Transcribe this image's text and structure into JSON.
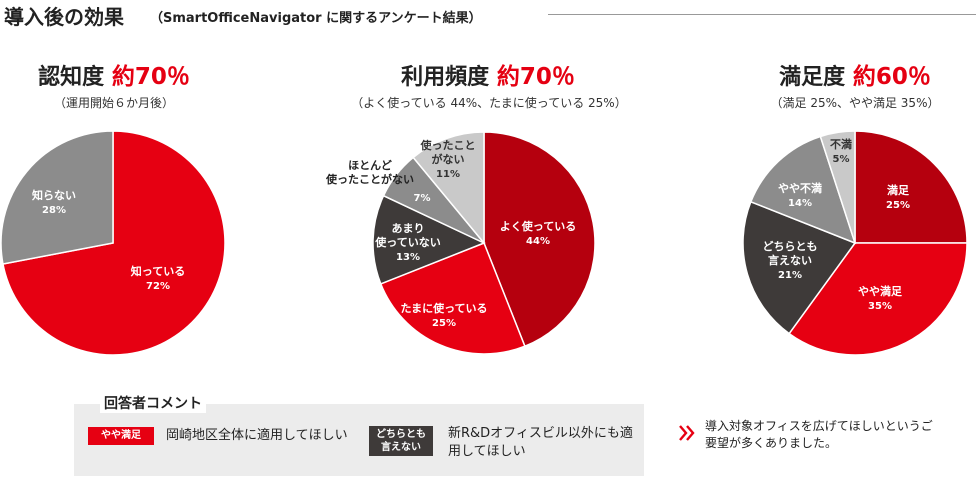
{
  "header": {
    "title": "導入後の効果",
    "subtitle": "（SmartOfficeNavigator に関するアンケート結果）"
  },
  "charts": [
    {
      "label": "認知度",
      "value": "約70％",
      "note": "（運用開始６か月後）"
    },
    {
      "label": "利用頻度",
      "value": "約70％",
      "note": "（よく使っている 44%、たまに使っている 25%）"
    },
    {
      "label": "満足度",
      "value": "約60％",
      "note": "（満足 25%、やや満足 35%）"
    }
  ],
  "chart_data": [
    {
      "type": "pie",
      "title": "認知度 約70％",
      "slices": [
        {
          "label": "知っている",
          "value": 72,
          "display": "72%",
          "color": "#e60012"
        },
        {
          "label": "知らない",
          "value": 28,
          "display": "28%",
          "color": "#8c8c8c"
        }
      ]
    },
    {
      "type": "pie",
      "title": "利用頻度 約70％",
      "slices": [
        {
          "label": "よく使っている",
          "value": 44,
          "display": "44%",
          "color": "#b5000e"
        },
        {
          "label": "たまに使っている",
          "value": 25,
          "display": "25%",
          "color": "#e60012"
        },
        {
          "label": "あまり使っていない",
          "value": 13,
          "display": "13%",
          "color": "#3e3a39"
        },
        {
          "label": "ほとんど使ったことがない",
          "value": 7,
          "display": "7%",
          "color": "#8c8c8c"
        },
        {
          "label": "使ったことがない",
          "value": 11,
          "display": "11%",
          "color": "#c9c9c9"
        }
      ]
    },
    {
      "type": "pie",
      "title": "満足度 約60％",
      "slices": [
        {
          "label": "満足",
          "value": 25,
          "display": "25%",
          "color": "#b5000e"
        },
        {
          "label": "やや満足",
          "value": 35,
          "display": "35%",
          "color": "#e60012"
        },
        {
          "label": "どちらとも言えない",
          "value": 21,
          "display": "21%",
          "color": "#3e3a39"
        },
        {
          "label": "やや不満",
          "value": 14,
          "display": "14%",
          "color": "#8c8c8c"
        },
        {
          "label": "不満",
          "value": 5,
          "display": "5%",
          "color": "#c9c9c9"
        }
      ]
    }
  ],
  "comments": {
    "title": "回答者コメント",
    "items": [
      {
        "tag": "やや満足",
        "tag_color": "#e60012",
        "text": "岡崎地区全体に適用してほしい"
      },
      {
        "tag": "どちらとも言えない",
        "tag_color": "#3e3a39",
        "text": "新R&Dオフィスビル以外にも適用してほしい"
      }
    ]
  },
  "summary_note": "導入対象オフィスを広げてほしいというご要望が多くありました。"
}
